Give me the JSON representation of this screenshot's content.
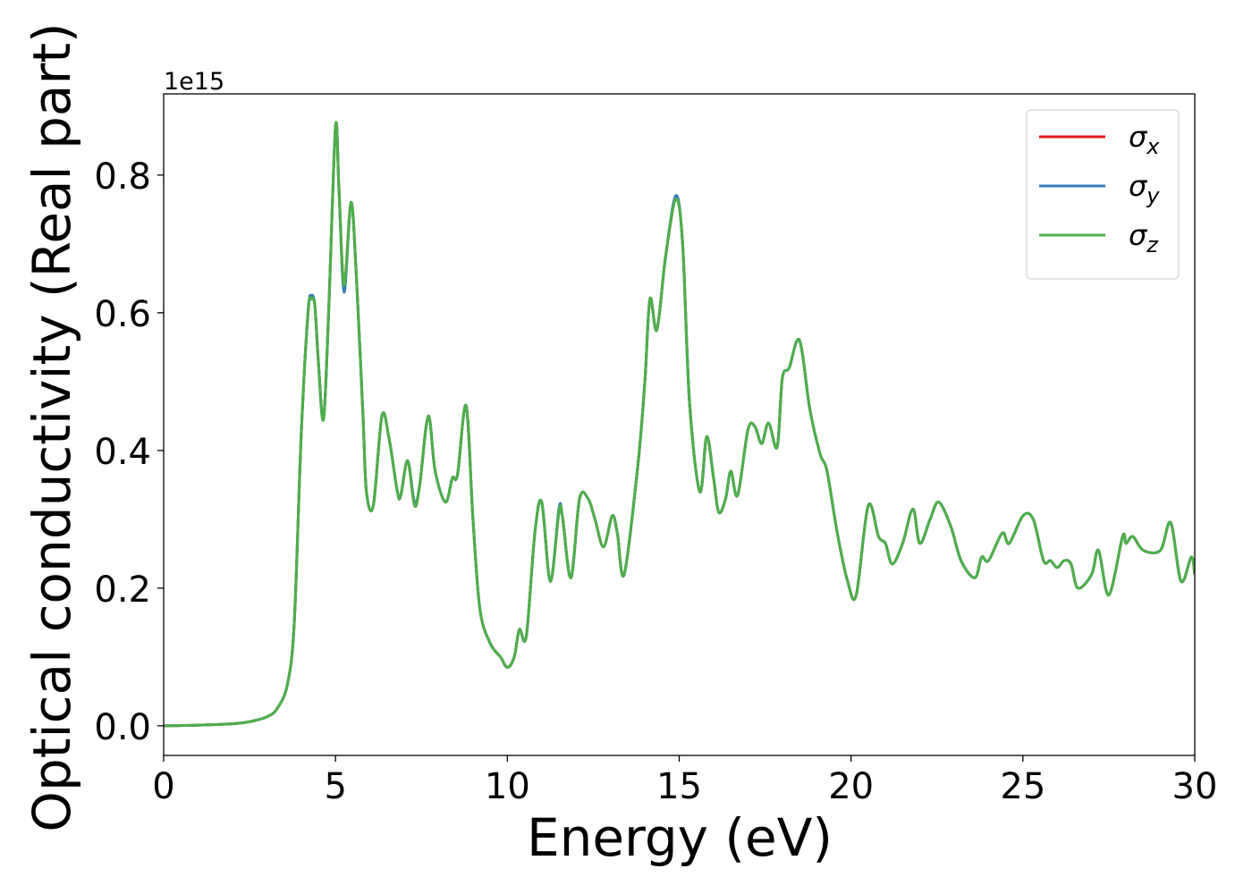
{
  "chart_data": {
    "type": "line",
    "x_label": "Energy (eV)",
    "y_label": "Optical conductivity (Real part)",
    "y_offset_label": "1e15",
    "x": [
      0,
      1,
      2,
      2.5,
      3,
      3.3,
      3.6,
      3.8,
      4.0,
      4.2,
      4.3,
      4.4,
      4.5,
      4.65,
      4.8,
      5.0,
      5.1,
      5.25,
      5.45,
      5.6,
      5.8,
      5.9,
      6.1,
      6.35,
      6.55,
      6.8,
      6.9,
      7.1,
      7.3,
      7.45,
      7.7,
      7.9,
      8.2,
      8.4,
      8.55,
      8.8,
      9.0,
      9.2,
      9.5,
      9.8,
      10.0,
      10.2,
      10.35,
      10.55,
      10.8,
      11.0,
      11.25,
      11.5,
      11.6,
      11.85,
      12.1,
      12.35,
      12.55,
      12.8,
      13.05,
      13.2,
      13.4,
      13.8,
      14.0,
      14.15,
      14.35,
      14.6,
      14.9,
      15.1,
      15.3,
      15.6,
      15.8,
      16.0,
      16.15,
      16.35,
      16.5,
      16.7,
      17.0,
      17.2,
      17.4,
      17.6,
      17.85,
      18.0,
      18.2,
      18.5,
      18.8,
      19.1,
      19.3,
      19.6,
      19.9,
      20.15,
      20.5,
      20.8,
      21.0,
      21.2,
      21.5,
      21.8,
      22.0,
      22.3,
      22.55,
      22.9,
      23.2,
      23.6,
      23.8,
      24.0,
      24.4,
      24.6,
      25.0,
      25.3,
      25.6,
      25.8,
      26.0,
      26.2,
      26.4,
      26.6,
      27.0,
      27.2,
      27.5,
      27.9,
      28.0,
      28.2,
      28.5,
      29.0,
      29.3,
      29.6,
      29.9,
      30.0
    ],
    "series": [
      {
        "name": "σx",
        "color": "#e41a1c",
        "values": [
          0,
          0.001,
          0.003,
          0.006,
          0.013,
          0.025,
          0.06,
          0.15,
          0.42,
          0.6,
          0.62,
          0.61,
          0.53,
          0.445,
          0.6,
          0.87,
          0.78,
          0.64,
          0.76,
          0.66,
          0.45,
          0.34,
          0.32,
          0.45,
          0.42,
          0.34,
          0.335,
          0.385,
          0.32,
          0.35,
          0.45,
          0.37,
          0.325,
          0.36,
          0.365,
          0.465,
          0.3,
          0.17,
          0.12,
          0.1,
          0.085,
          0.1,
          0.14,
          0.13,
          0.28,
          0.325,
          0.21,
          0.31,
          0.305,
          0.215,
          0.33,
          0.33,
          0.3,
          0.26,
          0.305,
          0.28,
          0.22,
          0.38,
          0.5,
          0.62,
          0.575,
          0.68,
          0.765,
          0.7,
          0.47,
          0.34,
          0.42,
          0.36,
          0.31,
          0.33,
          0.37,
          0.335,
          0.43,
          0.435,
          0.41,
          0.44,
          0.405,
          0.505,
          0.52,
          0.56,
          0.46,
          0.395,
          0.37,
          0.28,
          0.21,
          0.19,
          0.32,
          0.275,
          0.265,
          0.235,
          0.265,
          0.315,
          0.265,
          0.3,
          0.325,
          0.29,
          0.24,
          0.215,
          0.245,
          0.24,
          0.28,
          0.265,
          0.305,
          0.3,
          0.24,
          0.24,
          0.23,
          0.24,
          0.235,
          0.2,
          0.22,
          0.255,
          0.19,
          0.275,
          0.265,
          0.275,
          0.255,
          0.255,
          0.295,
          0.21,
          0.245,
          0.22
        ]
      },
      {
        "name": "σy",
        "color": "#377eb8",
        "values": [
          0,
          0.001,
          0.003,
          0.006,
          0.013,
          0.025,
          0.06,
          0.15,
          0.42,
          0.6,
          0.625,
          0.61,
          0.53,
          0.445,
          0.6,
          0.87,
          0.78,
          0.63,
          0.76,
          0.66,
          0.45,
          0.34,
          0.32,
          0.45,
          0.42,
          0.34,
          0.335,
          0.385,
          0.325,
          0.35,
          0.45,
          0.37,
          0.325,
          0.36,
          0.365,
          0.465,
          0.3,
          0.17,
          0.12,
          0.1,
          0.085,
          0.1,
          0.14,
          0.13,
          0.28,
          0.325,
          0.21,
          0.315,
          0.305,
          0.215,
          0.33,
          0.33,
          0.3,
          0.26,
          0.305,
          0.28,
          0.22,
          0.38,
          0.5,
          0.62,
          0.575,
          0.68,
          0.77,
          0.7,
          0.47,
          0.34,
          0.42,
          0.36,
          0.31,
          0.33,
          0.37,
          0.335,
          0.43,
          0.435,
          0.41,
          0.44,
          0.405,
          0.505,
          0.52,
          0.56,
          0.46,
          0.395,
          0.37,
          0.28,
          0.21,
          0.19,
          0.32,
          0.275,
          0.265,
          0.235,
          0.265,
          0.315,
          0.265,
          0.3,
          0.325,
          0.29,
          0.24,
          0.215,
          0.245,
          0.24,
          0.28,
          0.265,
          0.305,
          0.3,
          0.24,
          0.24,
          0.23,
          0.24,
          0.235,
          0.2,
          0.22,
          0.255,
          0.19,
          0.275,
          0.265,
          0.275,
          0.255,
          0.255,
          0.295,
          0.21,
          0.245,
          0.22
        ]
      },
      {
        "name": "σz",
        "color": "#4daf4a",
        "values": [
          0,
          0.001,
          0.003,
          0.006,
          0.013,
          0.025,
          0.06,
          0.15,
          0.42,
          0.6,
          0.62,
          0.61,
          0.53,
          0.445,
          0.6,
          0.87,
          0.78,
          0.64,
          0.76,
          0.66,
          0.45,
          0.34,
          0.32,
          0.45,
          0.42,
          0.34,
          0.335,
          0.385,
          0.32,
          0.35,
          0.45,
          0.37,
          0.325,
          0.36,
          0.365,
          0.465,
          0.3,
          0.17,
          0.12,
          0.1,
          0.085,
          0.1,
          0.14,
          0.13,
          0.28,
          0.325,
          0.21,
          0.31,
          0.305,
          0.215,
          0.33,
          0.33,
          0.3,
          0.26,
          0.305,
          0.28,
          0.22,
          0.38,
          0.5,
          0.62,
          0.575,
          0.68,
          0.765,
          0.7,
          0.47,
          0.34,
          0.42,
          0.36,
          0.31,
          0.33,
          0.37,
          0.335,
          0.43,
          0.435,
          0.41,
          0.44,
          0.405,
          0.505,
          0.52,
          0.56,
          0.46,
          0.395,
          0.37,
          0.28,
          0.21,
          0.19,
          0.32,
          0.275,
          0.265,
          0.235,
          0.265,
          0.315,
          0.265,
          0.3,
          0.325,
          0.29,
          0.24,
          0.215,
          0.245,
          0.24,
          0.28,
          0.265,
          0.305,
          0.3,
          0.24,
          0.24,
          0.23,
          0.24,
          0.235,
          0.2,
          0.22,
          0.255,
          0.19,
          0.275,
          0.265,
          0.275,
          0.255,
          0.255,
          0.295,
          0.21,
          0.245,
          0.22
        ]
      }
    ],
    "xlim": [
      0,
      30
    ],
    "xticks": [
      0,
      5,
      10,
      15,
      20,
      25,
      30
    ],
    "ylim": [
      -0.043,
      0.918
    ],
    "yticks": [
      {
        "value": 0,
        "label": "0.0"
      },
      0.2,
      0.4,
      0.6,
      0.8
    ],
    "legend": "upper right",
    "grid": false
  }
}
